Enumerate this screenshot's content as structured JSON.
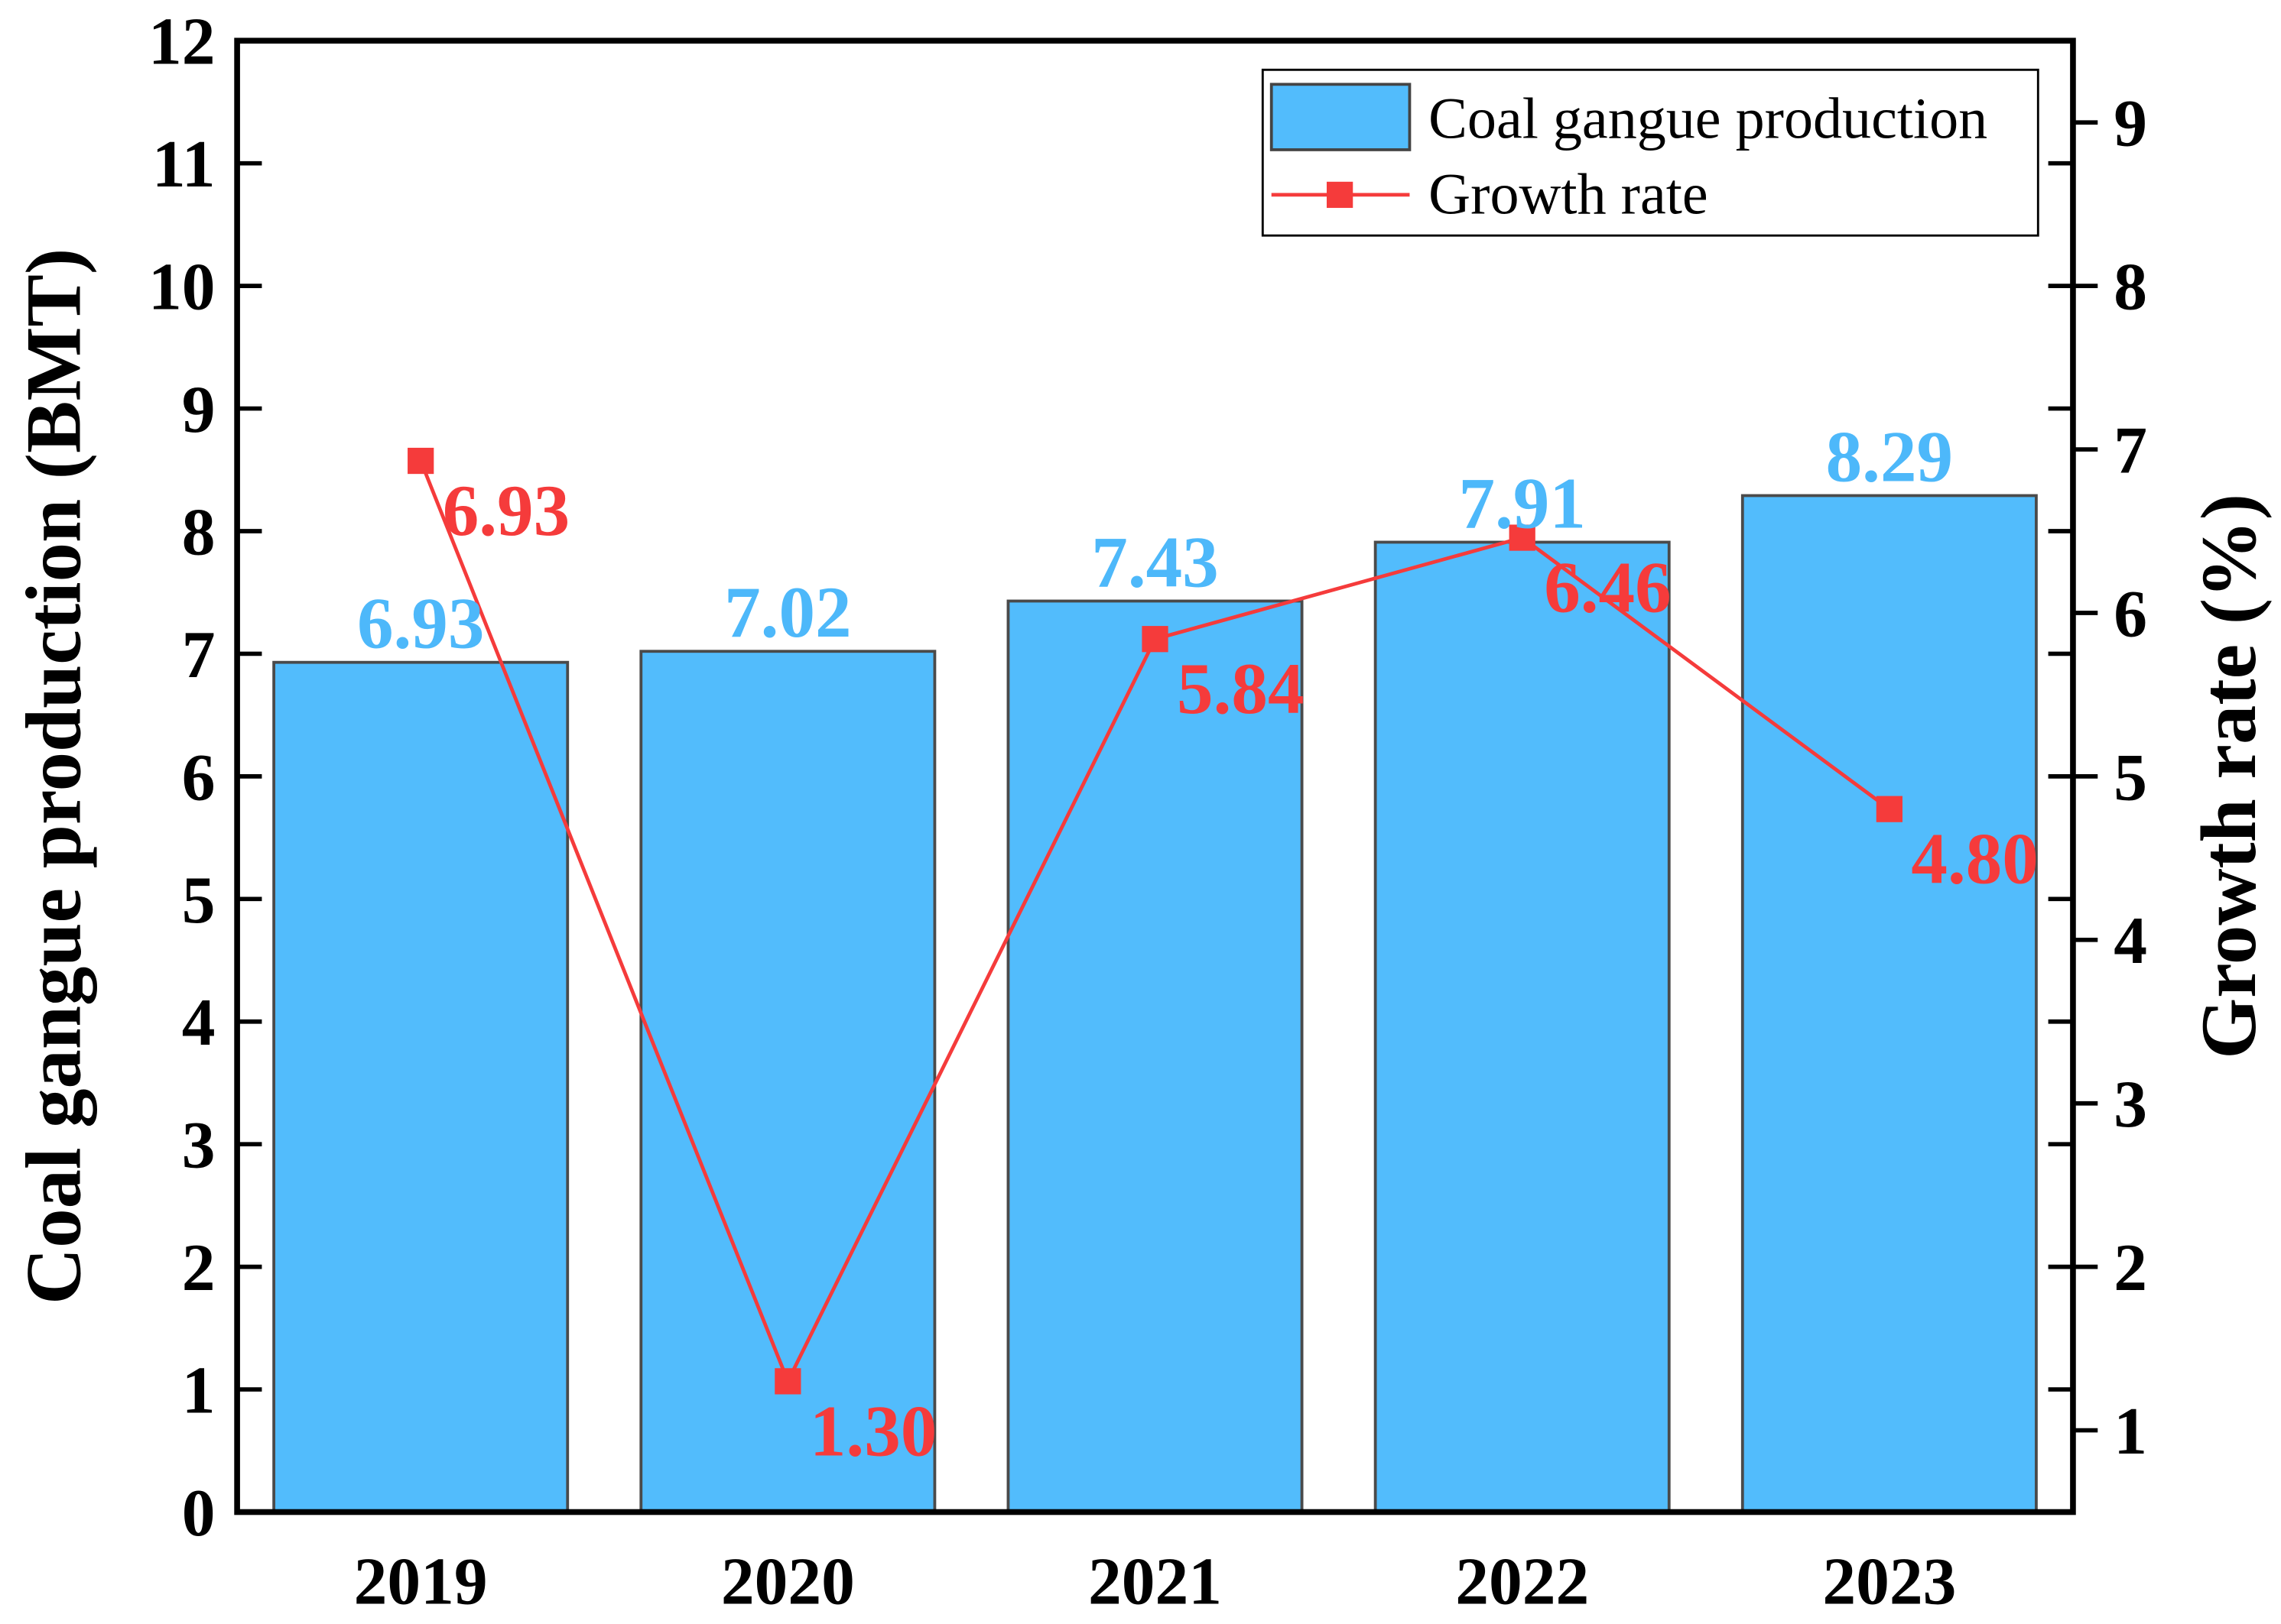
{
  "chart_data": {
    "type": "bar+line",
    "categories": [
      "2019",
      "2020",
      "2021",
      "2022",
      "2023"
    ],
    "series": [
      {
        "name": "Coal gangue production",
        "type": "bar",
        "axis": "left",
        "values": [
          6.93,
          7.02,
          7.43,
          7.91,
          8.29
        ],
        "labels": [
          "6.93",
          "7.02",
          "7.43",
          "7.91",
          "8.29"
        ],
        "color": "#52bcfc"
      },
      {
        "name": "Growth rate",
        "type": "line",
        "axis": "right",
        "values": [
          6.93,
          1.3,
          5.84,
          6.46,
          4.8
        ],
        "labels": [
          "6.93",
          "1.30",
          "5.84",
          "6.46",
          "4.80"
        ],
        "color": "#f53b3b"
      }
    ],
    "ylabel": "Coal gangue production (BMT)",
    "y2label": "Growth rate (%)",
    "ylim": [
      0,
      12
    ],
    "y2lim": [
      0.5,
      9.5
    ],
    "yticks": [
      "0",
      "1",
      "2",
      "3",
      "4",
      "5",
      "6",
      "7",
      "8",
      "9",
      "10",
      "11",
      "12"
    ],
    "y2ticks": [
      "1",
      "2",
      "3",
      "4",
      "5",
      "6",
      "7",
      "8",
      "9"
    ],
    "legend_position": "top-right",
    "grid": false
  }
}
